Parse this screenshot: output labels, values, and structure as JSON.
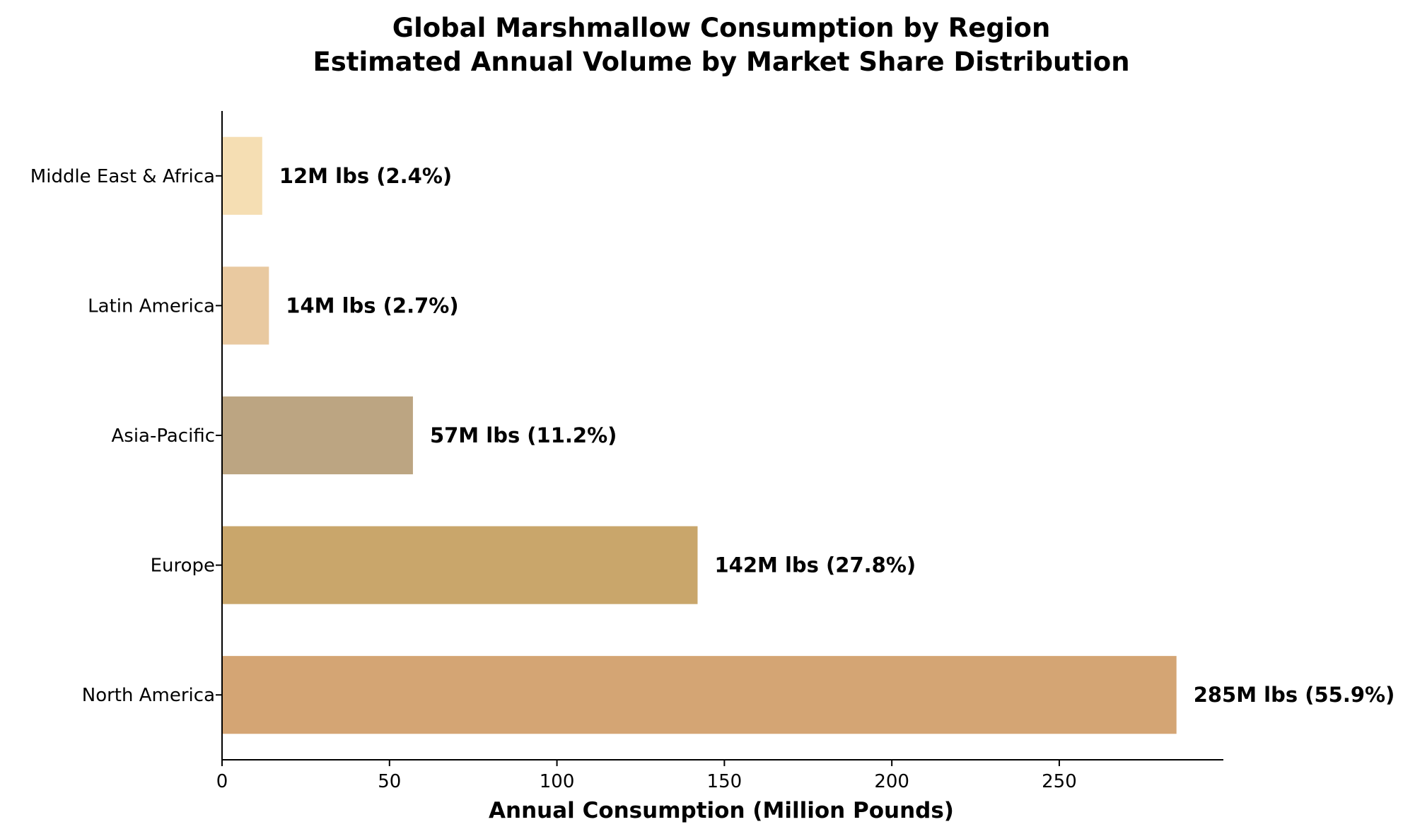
{
  "chart_data": {
    "type": "bar",
    "orientation": "horizontal",
    "title": "Global Marshmallow Consumption by Region",
    "subtitle": "Estimated Annual Volume by Market Share Distribution",
    "xlabel": "Annual Consumption (Million Pounds)",
    "ylabel": "",
    "xlim": [
      0,
      299
    ],
    "xticks": [
      0,
      50,
      100,
      150,
      200,
      250
    ],
    "grid": false,
    "legend": "none",
    "categories": [
      "North America",
      "Europe",
      "Asia-Pacific",
      "Latin America",
      "Middle East & Africa"
    ],
    "values": [
      285,
      142,
      57,
      14,
      12
    ],
    "labels": [
      "285M lbs (55.9%)",
      "142M lbs (27.8%)",
      "57M lbs (11.2%)",
      "14M lbs (2.7%)",
      "12M lbs (2.4%)"
    ],
    "colors": [
      "#d4a574",
      "#c9a66b",
      "#bca582",
      "#e9c9a0",
      "#f5deb3"
    ]
  }
}
